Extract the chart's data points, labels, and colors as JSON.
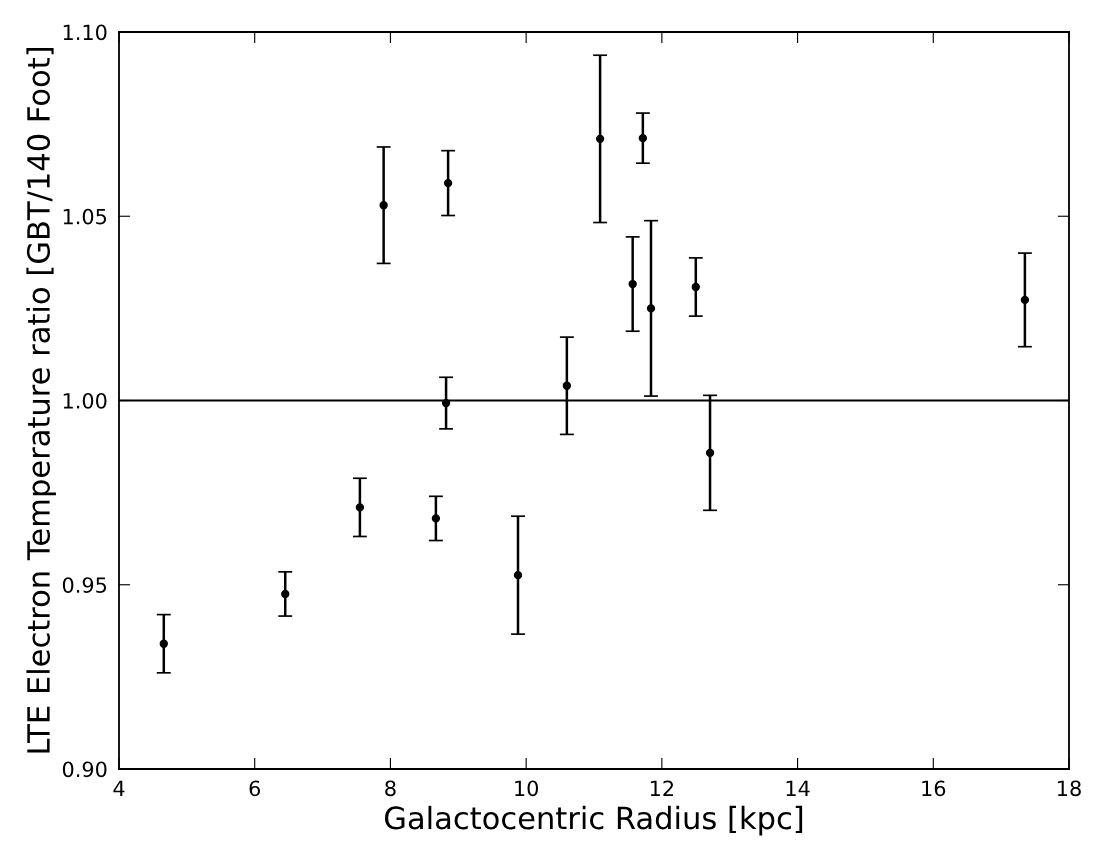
{
  "chart_data": {
    "type": "scatter",
    "xlabel": "Galactocentric Radius [kpc]",
    "ylabel": "LTE Electron Temperature ratio [GBT/140 Foot]",
    "x": [
      4.66,
      6.45,
      7.55,
      7.9,
      8.67,
      8.82,
      8.85,
      9.88,
      10.6,
      11.09,
      11.57,
      11.72,
      11.84,
      12.5,
      12.71,
      17.35
    ],
    "values": [
      0.934,
      0.9475,
      0.971,
      1.053,
      0.968,
      0.9993,
      1.059,
      0.9526,
      1.004,
      1.071,
      1.0316,
      1.0712,
      1.025,
      1.0308,
      0.9858,
      1.0273
    ],
    "errors": [
      0.0079,
      0.006,
      0.0079,
      0.0158,
      0.006,
      0.007,
      0.0088,
      0.016,
      0.0132,
      0.0227,
      0.0128,
      0.0068,
      0.0238,
      0.0079,
      0.0156,
      0.0127
    ],
    "color": "#000000",
    "marker": "circle",
    "xlim": [
      4,
      18
    ],
    "xticks": [
      4,
      6,
      8,
      10,
      12,
      14,
      16,
      18
    ],
    "ylim": [
      0.9,
      1.1
    ],
    "yticks": [
      {
        "value": 0.9,
        "label": "0.90"
      },
      {
        "value": 0.95,
        "label": "0.95"
      },
      {
        "value": 1.0,
        "label": "1.00"
      },
      {
        "value": 1.05,
        "label": "1.05"
      },
      {
        "value": 1.1,
        "label": "1.10"
      }
    ],
    "ref_lines": [
      {
        "axis": "y",
        "value": 1.0,
        "color": "#000000"
      }
    ],
    "grid": false,
    "legend": false
  }
}
